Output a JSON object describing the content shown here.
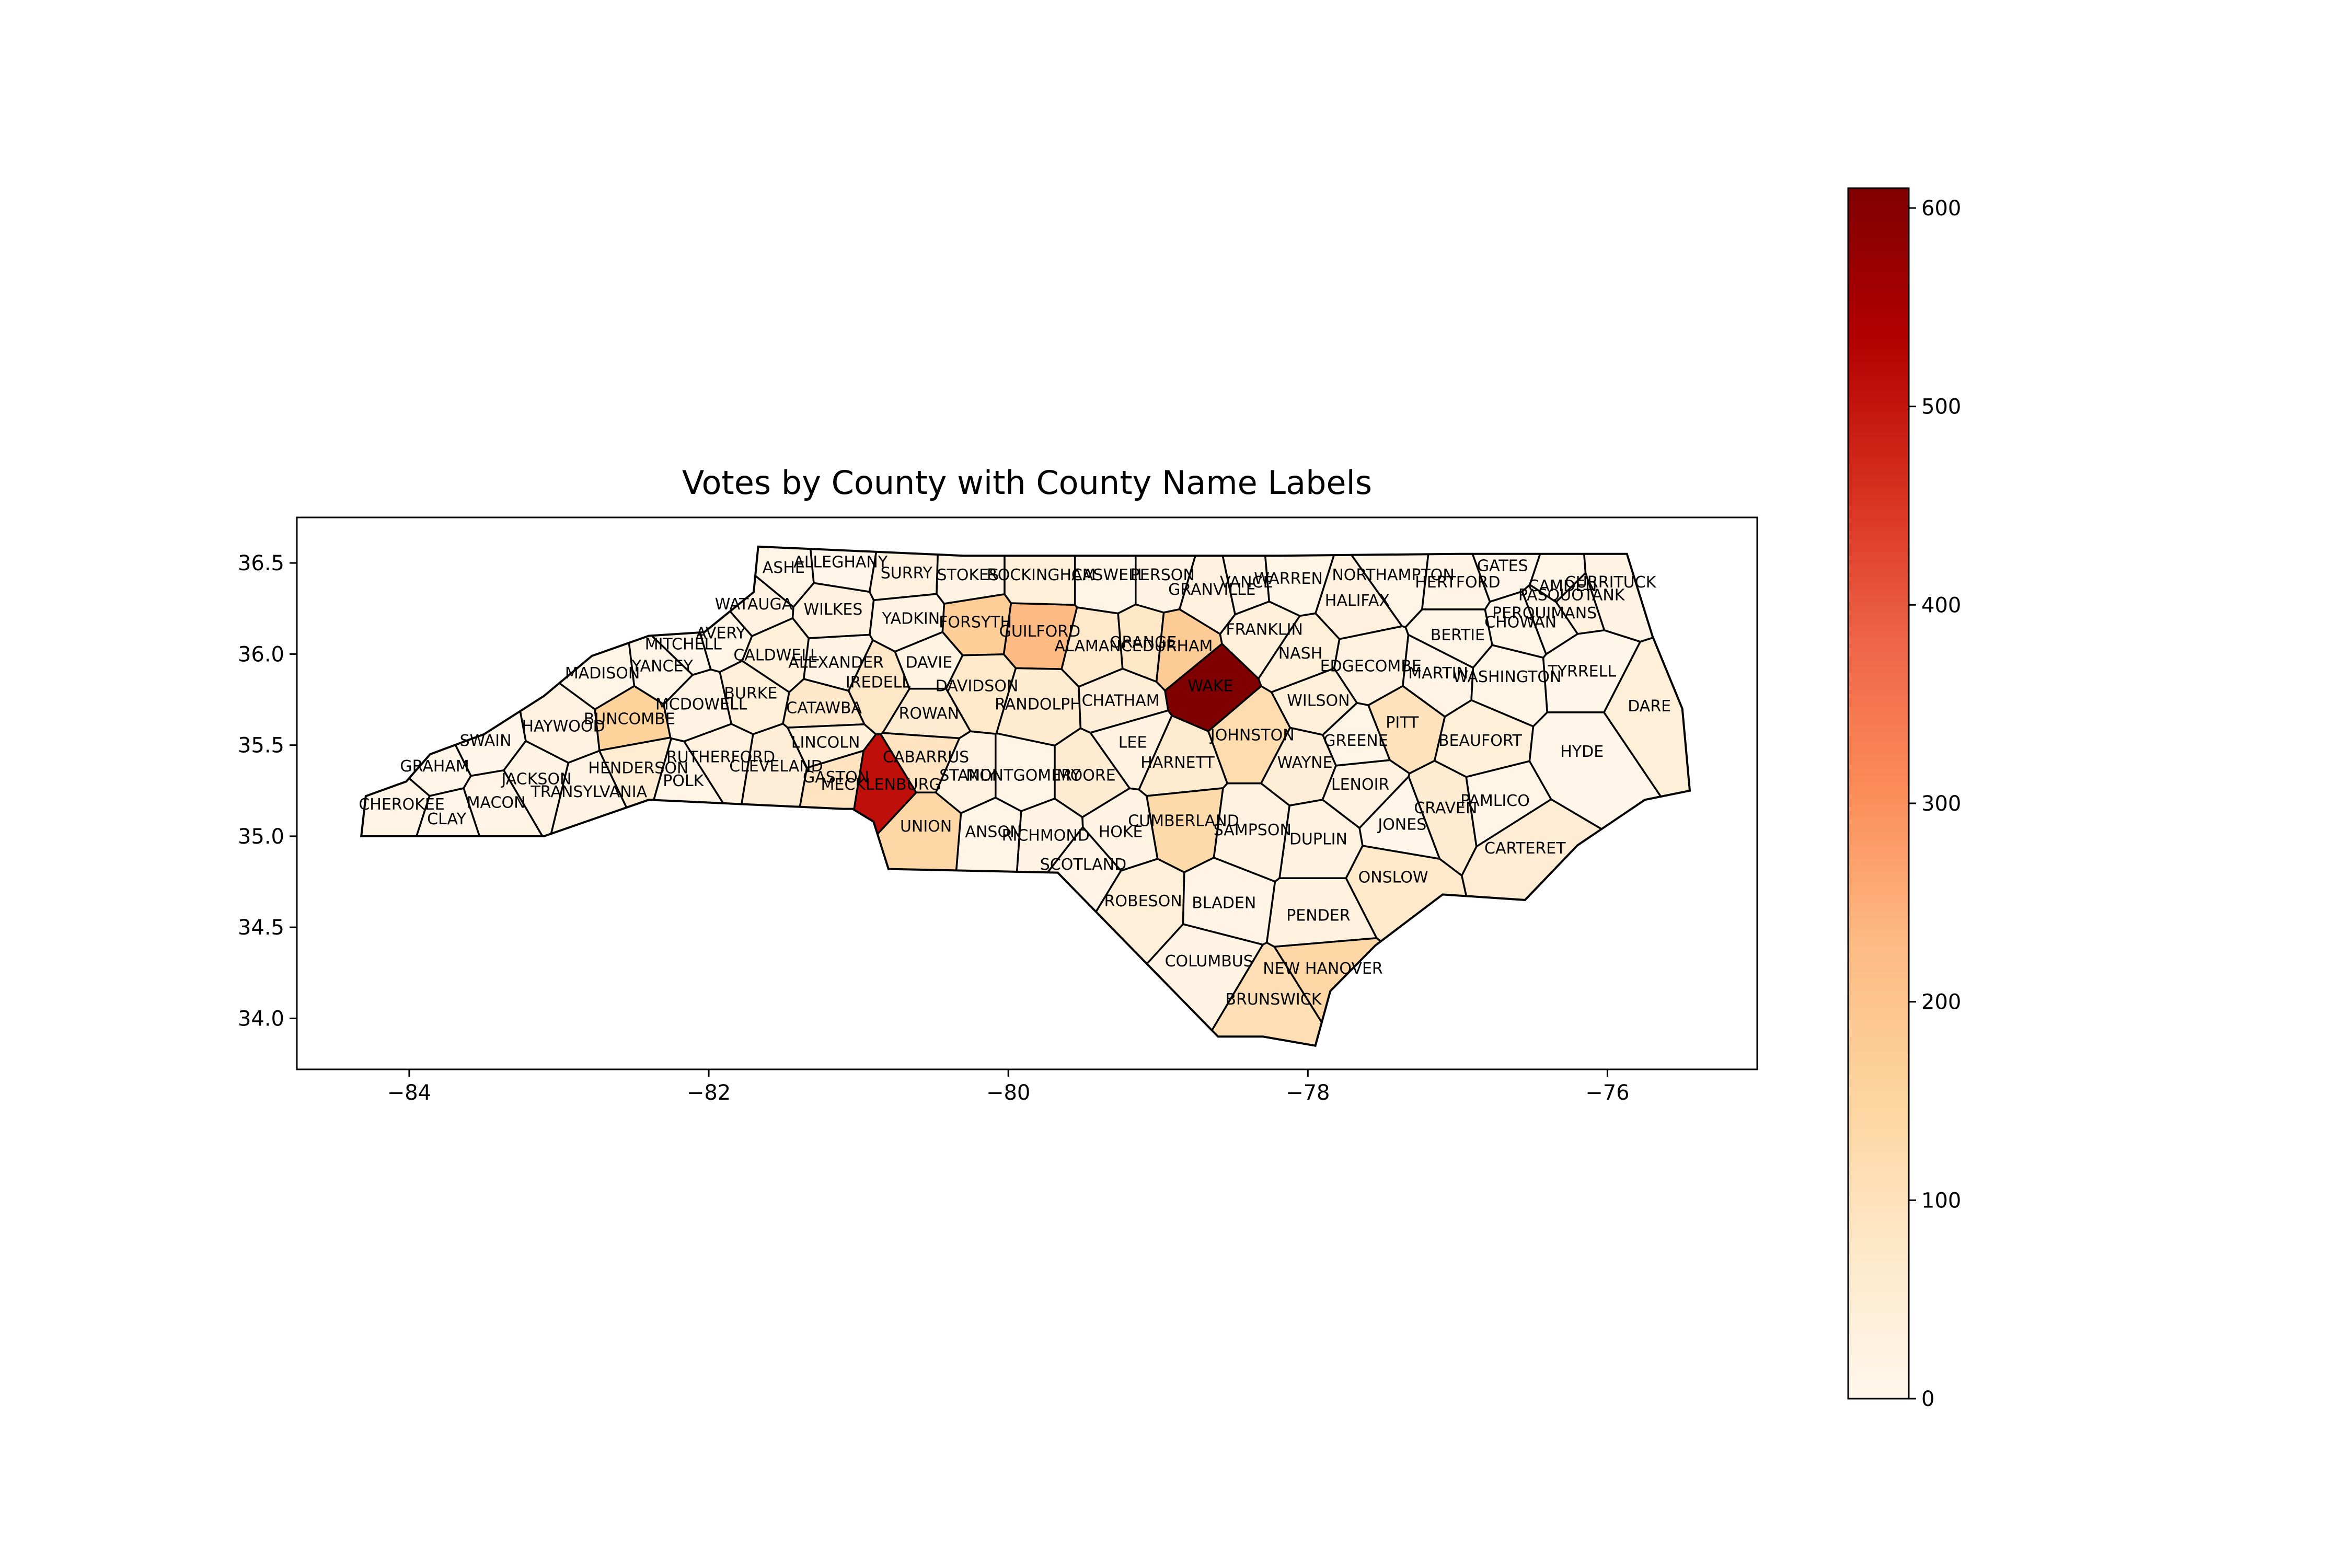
{
  "chart_data": {
    "type": "choropleth",
    "title": "Votes by County with County Name Labels",
    "x_ticks": [
      -84,
      -82,
      -80,
      -78,
      -76
    ],
    "x_tick_labels": [
      "−84",
      "−82",
      "−80",
      "−78",
      "−76"
    ],
    "y_ticks": [
      34.0,
      34.5,
      35.0,
      35.5,
      36.0,
      36.5
    ],
    "y_tick_labels": [
      "34.0",
      "34.5",
      "35.0",
      "35.5",
      "36.0",
      "36.5"
    ],
    "xlim": [
      -84.75,
      -75.0
    ],
    "ylim": [
      33.72,
      36.75
    ],
    "colorbar": {
      "colormap": "OrRd",
      "range": [
        0,
        610
      ],
      "ticks": [
        0,
        100,
        200,
        300,
        400,
        500,
        600
      ],
      "tick_labels": [
        "0",
        "100",
        "200",
        "300",
        "400",
        "500",
        "600"
      ],
      "colors": [
        "#fff7ec",
        "#fee8c8",
        "#fdd49e",
        "#fdbb84",
        "#fc8d59",
        "#ef6548",
        "#d7301f",
        "#b30000",
        "#7f0000"
      ]
    },
    "counties": [
      {
        "name": "CHEROKEE",
        "value": 15,
        "lon": -84.05,
        "lat": 35.17
      },
      {
        "name": "CLAY",
        "value": 8,
        "lon": -83.75,
        "lat": 35.09
      },
      {
        "name": "GRAHAM",
        "value": 6,
        "lon": -83.83,
        "lat": 35.38
      },
      {
        "name": "MACON",
        "value": 15,
        "lon": -83.42,
        "lat": 35.18
      },
      {
        "name": "SWAIN",
        "value": 8,
        "lon": -83.49,
        "lat": 35.52
      },
      {
        "name": "JACKSON",
        "value": 20,
        "lon": -83.15,
        "lat": 35.31
      },
      {
        "name": "TRANSYLVANIA",
        "value": 18,
        "lon": -82.8,
        "lat": 35.24
      },
      {
        "name": "HAYWOOD",
        "value": 28,
        "lon": -82.97,
        "lat": 35.6
      },
      {
        "name": "HENDERSON",
        "value": 52,
        "lon": -82.47,
        "lat": 35.37
      },
      {
        "name": "POLK",
        "value": 12,
        "lon": -82.17,
        "lat": 35.3
      },
      {
        "name": "BUNCOMBE",
        "value": 160,
        "lon": -82.53,
        "lat": 35.64
      },
      {
        "name": "MADISON",
        "value": 12,
        "lon": -82.71,
        "lat": 35.89
      },
      {
        "name": "YANCEY",
        "value": 10,
        "lon": -82.31,
        "lat": 35.93
      },
      {
        "name": "MITCHELL",
        "value": 9,
        "lon": -82.17,
        "lat": 36.05
      },
      {
        "name": "AVERY",
        "value": 10,
        "lon": -81.92,
        "lat": 36.11
      },
      {
        "name": "MCDOWELL",
        "value": 20,
        "lon": -82.05,
        "lat": 35.72
      },
      {
        "name": "RUTHERFORD",
        "value": 30,
        "lon": -81.92,
        "lat": 35.43
      },
      {
        "name": "BURKE",
        "value": 40,
        "lon": -81.72,
        "lat": 35.78
      },
      {
        "name": "CALDWELL",
        "value": 38,
        "lon": -81.55,
        "lat": 35.99
      },
      {
        "name": "WATAUGA",
        "value": 28,
        "lon": -81.7,
        "lat": 36.27
      },
      {
        "name": "ASHE",
        "value": 12,
        "lon": -81.5,
        "lat": 36.47
      },
      {
        "name": "ALLEGHANY",
        "value": 6,
        "lon": -81.12,
        "lat": 36.5
      },
      {
        "name": "WILKES",
        "value": 30,
        "lon": -81.17,
        "lat": 36.24
      },
      {
        "name": "ALEXANDER",
        "value": 18,
        "lon": -81.15,
        "lat": 35.95
      },
      {
        "name": "CATAWBA",
        "value": 75,
        "lon": -81.23,
        "lat": 35.7
      },
      {
        "name": "CLEVELAND",
        "value": 45,
        "lon": -81.55,
        "lat": 35.38
      },
      {
        "name": "LINCOLN",
        "value": 38,
        "lon": -81.22,
        "lat": 35.51
      },
      {
        "name": "GASTON",
        "value": 90,
        "lon": -81.15,
        "lat": 35.32
      },
      {
        "name": "IREDELL",
        "value": 80,
        "lon": -80.87,
        "lat": 35.84
      },
      {
        "name": "MECKLENBURG",
        "value": 510,
        "lon": -80.85,
        "lat": 35.28
      },
      {
        "name": "CABARRUS",
        "value": 90,
        "lon": -80.55,
        "lat": 35.43
      },
      {
        "name": "UNION",
        "value": 140,
        "lon": -80.55,
        "lat": 35.05
      },
      {
        "name": "ROWAN",
        "value": 55,
        "lon": -80.53,
        "lat": 35.67
      },
      {
        "name": "STANLY",
        "value": 25,
        "lon": -80.27,
        "lat": 35.33
      },
      {
        "name": "ANSON",
        "value": 10,
        "lon": -80.1,
        "lat": 35.02
      },
      {
        "name": "DAVIE",
        "value": 22,
        "lon": -80.53,
        "lat": 35.95
      },
      {
        "name": "YADKIN",
        "value": 18,
        "lon": -80.65,
        "lat": 36.19
      },
      {
        "name": "SURRY",
        "value": 30,
        "lon": -80.68,
        "lat": 36.44
      },
      {
        "name": "STOKES",
        "value": 20,
        "lon": -80.27,
        "lat": 36.43
      },
      {
        "name": "FORSYTH",
        "value": 170,
        "lon": -80.22,
        "lat": 36.17
      },
      {
        "name": "DAVIDSON",
        "value": 70,
        "lon": -80.21,
        "lat": 35.82
      },
      {
        "name": "GUILFORD",
        "value": 230,
        "lon": -79.79,
        "lat": 36.12
      },
      {
        "name": "ROCKINGHAM",
        "value": 40,
        "lon": -79.78,
        "lat": 36.43
      },
      {
        "name": "RANDOLPH",
        "value": 60,
        "lon": -79.8,
        "lat": 35.72
      },
      {
        "name": "MONTGOMERY",
        "value": 12,
        "lon": -79.9,
        "lat": 35.33
      },
      {
        "name": "RICHMOND",
        "value": 20,
        "lon": -79.75,
        "lat": 35.0
      },
      {
        "name": "SCOTLAND",
        "value": 15,
        "lon": -79.5,
        "lat": 34.84
      },
      {
        "name": "MOORE",
        "value": 55,
        "lon": -79.48,
        "lat": 35.33
      },
      {
        "name": "ALAMANCE",
        "value": 70,
        "lon": -79.4,
        "lat": 36.04
      },
      {
        "name": "CASWELL",
        "value": 10,
        "lon": -79.33,
        "lat": 36.43
      },
      {
        "name": "PERSON",
        "value": 18,
        "lon": -78.97,
        "lat": 36.43
      },
      {
        "name": "ORANGE",
        "value": 80,
        "lon": -79.1,
        "lat": 36.06
      },
      {
        "name": "DURHAM",
        "value": 180,
        "lon": -78.87,
        "lat": 36.04
      },
      {
        "name": "CHATHAM",
        "value": 45,
        "lon": -79.25,
        "lat": 35.74
      },
      {
        "name": "LEE",
        "value": 25,
        "lon": -79.17,
        "lat": 35.51
      },
      {
        "name": "HOKE",
        "value": 18,
        "lon": -79.25,
        "lat": 35.02
      },
      {
        "name": "WAKE",
        "value": 610,
        "lon": -78.65,
        "lat": 35.82
      },
      {
        "name": "HARNETT",
        "value": 60,
        "lon": -78.87,
        "lat": 35.4
      },
      {
        "name": "CUMBERLAND",
        "value": 130,
        "lon": -78.83,
        "lat": 35.08
      },
      {
        "name": "ROBESON",
        "value": 40,
        "lon": -79.1,
        "lat": 34.64
      },
      {
        "name": "BLADEN",
        "value": 15,
        "lon": -78.56,
        "lat": 34.63
      },
      {
        "name": "COLUMBUS",
        "value": 20,
        "lon": -78.66,
        "lat": 34.31
      },
      {
        "name": "BRUNSWICK",
        "value": 110,
        "lon": -78.23,
        "lat": 34.1
      },
      {
        "name": "NEW HANOVER",
        "value": 140,
        "lon": -77.9,
        "lat": 34.27
      },
      {
        "name": "PENDER",
        "value": 30,
        "lon": -77.93,
        "lat": 34.56
      },
      {
        "name": "ONSLOW",
        "value": 70,
        "lon": -77.43,
        "lat": 34.77
      },
      {
        "name": "DUPLIN",
        "value": 25,
        "lon": -77.93,
        "lat": 34.98
      },
      {
        "name": "SAMPSON",
        "value": 25,
        "lon": -78.37,
        "lat": 35.03
      },
      {
        "name": "JOHNSTON",
        "value": 120,
        "lon": -78.37,
        "lat": 35.55
      },
      {
        "name": "WAYNE",
        "value": 45,
        "lon": -78.02,
        "lat": 35.4
      },
      {
        "name": "LENOIR",
        "value": 25,
        "lon": -77.65,
        "lat": 35.28
      },
      {
        "name": "JONES",
        "value": 8,
        "lon": -77.37,
        "lat": 35.06
      },
      {
        "name": "CRAVEN",
        "value": 55,
        "lon": -77.08,
        "lat": 35.15
      },
      {
        "name": "PAMLICO",
        "value": 10,
        "lon": -76.75,
        "lat": 35.19
      },
      {
        "name": "CARTERET",
        "value": 50,
        "lon": -76.55,
        "lat": 34.93
      },
      {
        "name": "GREENE",
        "value": 10,
        "lon": -77.68,
        "lat": 35.52
      },
      {
        "name": "PITT",
        "value": 100,
        "lon": -77.37,
        "lat": 35.62
      },
      {
        "name": "WILSON",
        "value": 40,
        "lon": -77.93,
        "lat": 35.74
      },
      {
        "name": "NASH",
        "value": 40,
        "lon": -78.05,
        "lat": 36.0
      },
      {
        "name": "EDGECOMBE",
        "value": 25,
        "lon": -77.58,
        "lat": 35.93
      },
      {
        "name": "FRANKLIN",
        "value": 35,
        "lon": -78.29,
        "lat": 36.13
      },
      {
        "name": "GRANVILLE",
        "value": 30,
        "lon": -78.64,
        "lat": 36.35
      },
      {
        "name": "VANCE",
        "value": 20,
        "lon": -78.41,
        "lat": 36.39
      },
      {
        "name": "WARREN",
        "value": 10,
        "lon": -78.13,
        "lat": 36.41
      },
      {
        "name": "HALIFAX",
        "value": 30,
        "lon": -77.67,
        "lat": 36.29
      },
      {
        "name": "NORTHAMPTON",
        "value": 12,
        "lon": -77.43,
        "lat": 36.43
      },
      {
        "name": "HERTFORD",
        "value": 15,
        "lon": -77.0,
        "lat": 36.39
      },
      {
        "name": "GATES",
        "value": 8,
        "lon": -76.7,
        "lat": 36.48
      },
      {
        "name": "BERTIE",
        "value": 12,
        "lon": -77.0,
        "lat": 36.1
      },
      {
        "name": "MARTIN",
        "value": 15,
        "lon": -77.13,
        "lat": 35.89
      },
      {
        "name": "WASHINGTON",
        "value": 10,
        "lon": -76.67,
        "lat": 35.87
      },
      {
        "name": "BEAUFORT",
        "value": 40,
        "lon": -76.85,
        "lat": 35.52
      },
      {
        "name": "HYDE",
        "value": 8,
        "lon": -76.17,
        "lat": 35.46
      },
      {
        "name": "DARE",
        "value": 40,
        "lon": -75.72,
        "lat": 35.71
      },
      {
        "name": "TYRRELL",
        "value": 5,
        "lon": -76.17,
        "lat": 35.9
      },
      {
        "name": "CHOWAN",
        "value": 10,
        "lon": -76.58,
        "lat": 36.17
      },
      {
        "name": "PERQUIMANS",
        "value": 10,
        "lon": -76.42,
        "lat": 36.22
      },
      {
        "name": "PASQUOTANK",
        "value": 30,
        "lon": -76.24,
        "lat": 36.32
      },
      {
        "name": "CAMDEN",
        "value": 10,
        "lon": -76.3,
        "lat": 36.37
      },
      {
        "name": "CURRITUCK",
        "value": 20,
        "lon": -75.98,
        "lat": 36.39
      }
    ]
  }
}
